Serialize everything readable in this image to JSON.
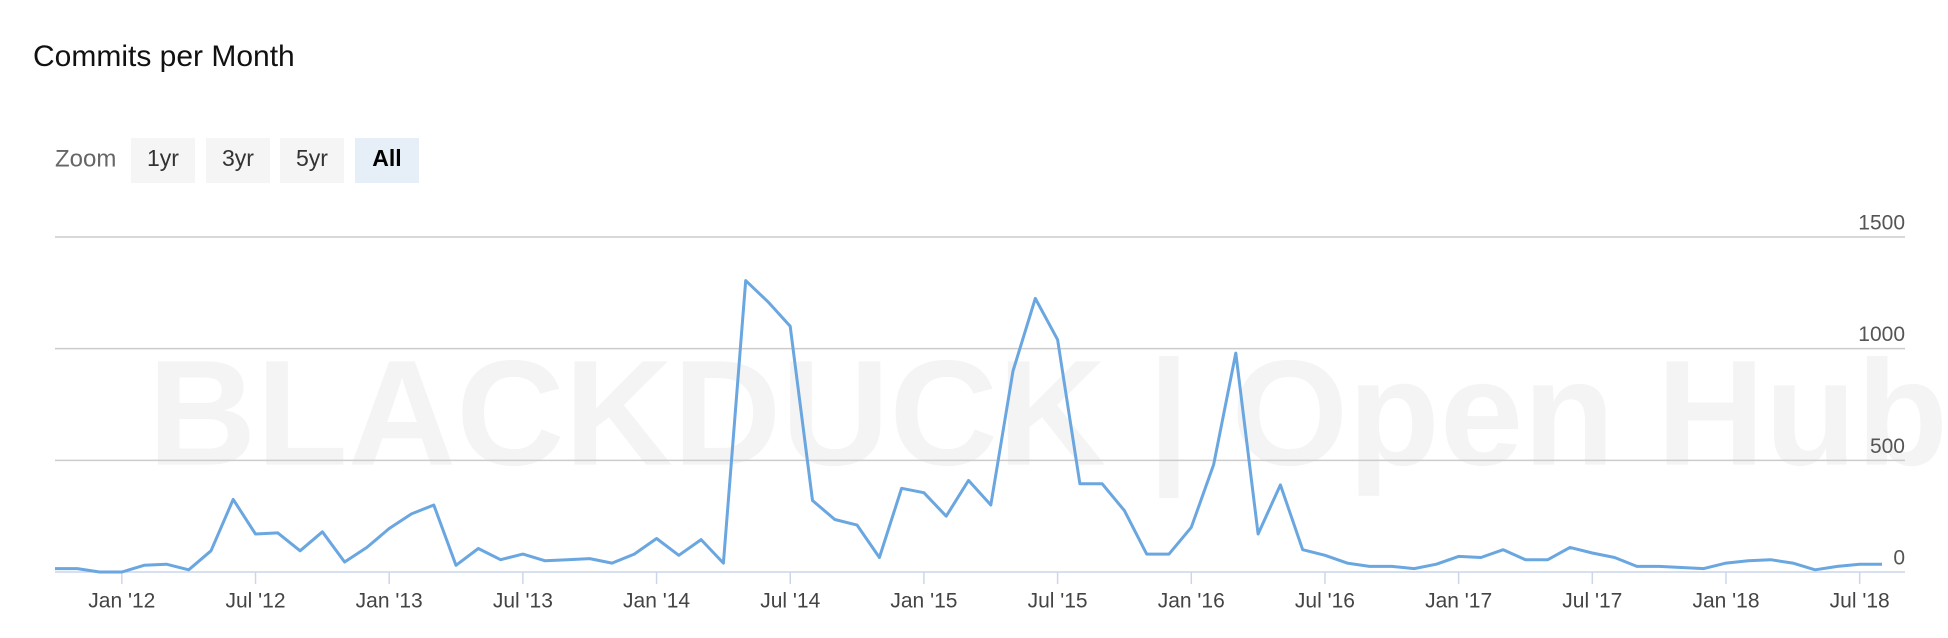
{
  "title": "Commits per Month",
  "zoom": {
    "label": "Zoom",
    "buttons": [
      "1yr",
      "3yr",
      "5yr",
      "All"
    ],
    "selected": 3
  },
  "watermark": "BLACKDUCK | Open Hub",
  "chart_data": {
    "type": "line",
    "x": [
      "2011-10",
      "2011-11",
      "2011-12",
      "2012-01",
      "2012-02",
      "2012-03",
      "2012-04",
      "2012-05",
      "2012-06",
      "2012-07",
      "2012-08",
      "2012-09",
      "2012-10",
      "2012-11",
      "2012-12",
      "2013-01",
      "2013-02",
      "2013-03",
      "2013-04",
      "2013-05",
      "2013-06",
      "2013-07",
      "2013-08",
      "2013-09",
      "2013-10",
      "2013-11",
      "2013-12",
      "2014-01",
      "2014-02",
      "2014-03",
      "2014-04",
      "2014-05",
      "2014-06",
      "2014-07",
      "2014-08",
      "2014-09",
      "2014-10",
      "2014-11",
      "2014-12",
      "2015-01",
      "2015-02",
      "2015-03",
      "2015-04",
      "2015-05",
      "2015-06",
      "2015-07",
      "2015-08",
      "2015-09",
      "2015-10",
      "2015-11",
      "2015-12",
      "2016-01",
      "2016-02",
      "2016-03",
      "2016-04",
      "2016-05",
      "2016-06",
      "2016-07",
      "2016-08",
      "2016-09",
      "2016-10",
      "2016-11",
      "2016-12",
      "2017-01",
      "2017-02",
      "2017-03",
      "2017-04",
      "2017-05",
      "2017-06",
      "2017-07",
      "2017-08",
      "2017-09",
      "2017-10",
      "2017-11",
      "2017-12",
      "2018-01",
      "2018-02",
      "2018-03",
      "2018-04",
      "2018-05",
      "2018-06",
      "2018-07",
      "2018-08"
    ],
    "series": [
      {
        "name": "Commits",
        "color": "#6aa6e0",
        "values": [
          15,
          15,
          0,
          0,
          30,
          35,
          10,
          95,
          325,
          170,
          175,
          95,
          180,
          45,
          110,
          195,
          260,
          300,
          30,
          105,
          55,
          80,
          50,
          55,
          60,
          40,
          80,
          150,
          75,
          145,
          40,
          1305,
          1210,
          1100,
          320,
          235,
          210,
          65,
          375,
          355,
          250,
          410,
          300,
          900,
          1225,
          1040,
          395,
          395,
          275,
          80,
          80,
          200,
          480,
          980,
          170,
          390,
          100,
          75,
          40,
          25,
          25,
          15,
          35,
          70,
          65,
          100,
          55,
          55,
          110,
          85,
          65,
          25,
          25,
          20,
          15,
          40,
          50,
          55,
          40,
          10,
          25,
          35,
          35
        ]
      }
    ],
    "ylim": [
      0,
      1500
    ],
    "yticks": [
      0,
      500,
      1000,
      1500
    ],
    "grid": true,
    "xticks": [
      {
        "value": "2012-01",
        "label": "Jan '12"
      },
      {
        "value": "2012-07",
        "label": "Jul '12"
      },
      {
        "value": "2013-01",
        "label": "Jan '13"
      },
      {
        "value": "2013-07",
        "label": "Jul '13"
      },
      {
        "value": "2014-01",
        "label": "Jan '14"
      },
      {
        "value": "2014-07",
        "label": "Jul '14"
      },
      {
        "value": "2015-01",
        "label": "Jan '15"
      },
      {
        "value": "2015-07",
        "label": "Jul '15"
      },
      {
        "value": "2016-01",
        "label": "Jan '16"
      },
      {
        "value": "2016-07",
        "label": "Jul '16"
      },
      {
        "value": "2017-01",
        "label": "Jan '17"
      },
      {
        "value": "2017-07",
        "label": "Jul '17"
      },
      {
        "value": "2018-01",
        "label": "Jan '18"
      },
      {
        "value": "2018-07",
        "label": "Jul '18"
      }
    ]
  }
}
